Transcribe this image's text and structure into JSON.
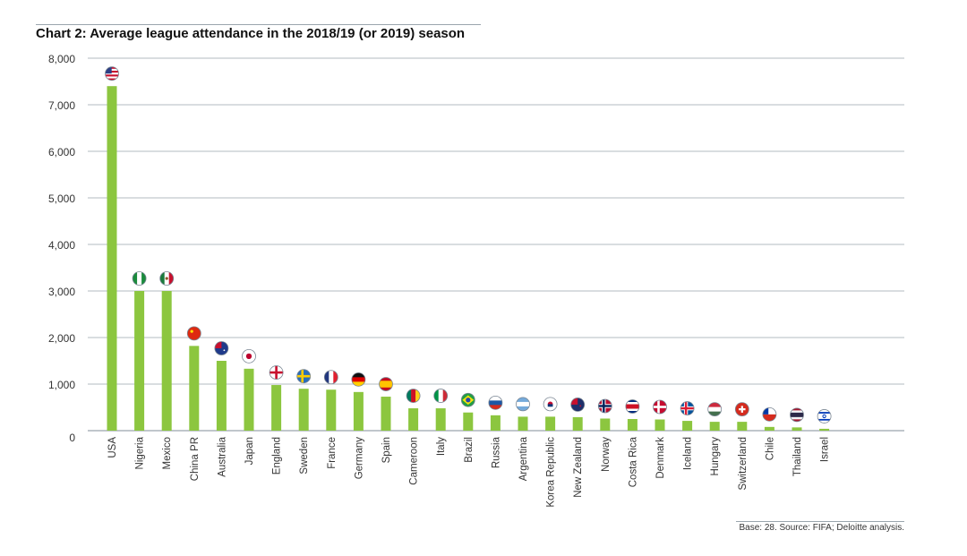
{
  "page": {
    "title": "Chart 2: Average league attendance in the 2018/19 (or 2019) season",
    "footnote": "Base: 28. Source: FIFA; Deloitte analysis."
  },
  "colors": {
    "bar": "#8cc63f",
    "grid": "#9aa5ad",
    "axis_text": "#333333"
  },
  "chart_data": {
    "type": "bar",
    "title": "Chart 2: Average league attendance in the 2018/19 (or 2019) season",
    "xlabel": "",
    "ylabel": "",
    "ylim": [
      0,
      8000
    ],
    "yticks": [
      0,
      1000,
      2000,
      3000,
      4000,
      5000,
      6000,
      7000,
      8000
    ],
    "ytick_labels": [
      "0",
      "1,000",
      "2,000",
      "3,000",
      "4,000",
      "5,000",
      "6,000",
      "7,000",
      "8,000"
    ],
    "grid": true,
    "categories": [
      "USA",
      "Nigeria",
      "Mexico",
      "China PR",
      "Australia",
      "Japan",
      "England",
      "Sweden",
      "France",
      "Germany",
      "Spain",
      "Cameroon",
      "Italy",
      "Brazil",
      "Russia",
      "Argentina",
      "Korea Republic",
      "New Zealand",
      "Norway",
      "Costa Rica",
      "Denmark",
      "Iceland",
      "Hungary",
      "Switzerland",
      "Chile",
      "Thailand",
      "Israel"
    ],
    "values": [
      7400,
      3000,
      3000,
      1820,
      1500,
      1330,
      980,
      900,
      880,
      830,
      730,
      480,
      480,
      390,
      330,
      300,
      300,
      290,
      260,
      250,
      240,
      210,
      190,
      190,
      80,
      70,
      40
    ],
    "flags": [
      "flag-usa-icon",
      "flag-nigeria-icon",
      "flag-mexico-icon",
      "flag-china-icon",
      "flag-australia-icon",
      "flag-japan-icon",
      "flag-england-icon",
      "flag-sweden-icon",
      "flag-france-icon",
      "flag-germany-icon",
      "flag-spain-icon",
      "flag-cameroon-icon",
      "flag-italy-icon",
      "flag-brazil-icon",
      "flag-russia-icon",
      "flag-argentina-icon",
      "flag-korea-icon",
      "flag-new-zealand-icon",
      "flag-norway-icon",
      "flag-costa-rica-icon",
      "flag-denmark-icon",
      "flag-iceland-icon",
      "flag-hungary-icon",
      "flag-switzerland-icon",
      "flag-chile-icon",
      "flag-thailand-icon",
      "flag-israel-icon"
    ]
  }
}
